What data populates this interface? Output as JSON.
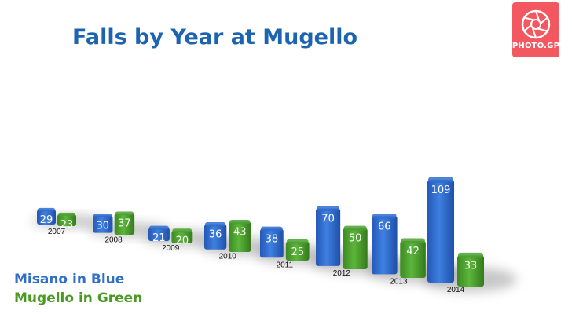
{
  "brand": {
    "logo_text": "PHOTO.GP",
    "logo_color": "#f3575f"
  },
  "chart_data": {
    "type": "bar",
    "title": "Falls by Year at Mugello",
    "xlabel": "",
    "ylabel": "",
    "categories": [
      "2007",
      "2008",
      "2009",
      "2010",
      "2011",
      "2012",
      "2013",
      "2014"
    ],
    "series": [
      {
        "values": [
          29,
          30,
          21,
          36,
          38,
          70,
          66,
          109
        ],
        "color": "#2f6ccc"
      },
      {
        "values": [
          23,
          37,
          20,
          43,
          25,
          50,
          42,
          33
        ],
        "color": "#4ca032"
      }
    ],
    "ylim": [
      0,
      110
    ],
    "grid": false,
    "legend": [
      "Misano in Blue",
      "Mugello in Green"
    ],
    "legend_colors": [
      "#2f6fc6",
      "#4a9a22"
    ],
    "title_color": "#1c63b0"
  }
}
